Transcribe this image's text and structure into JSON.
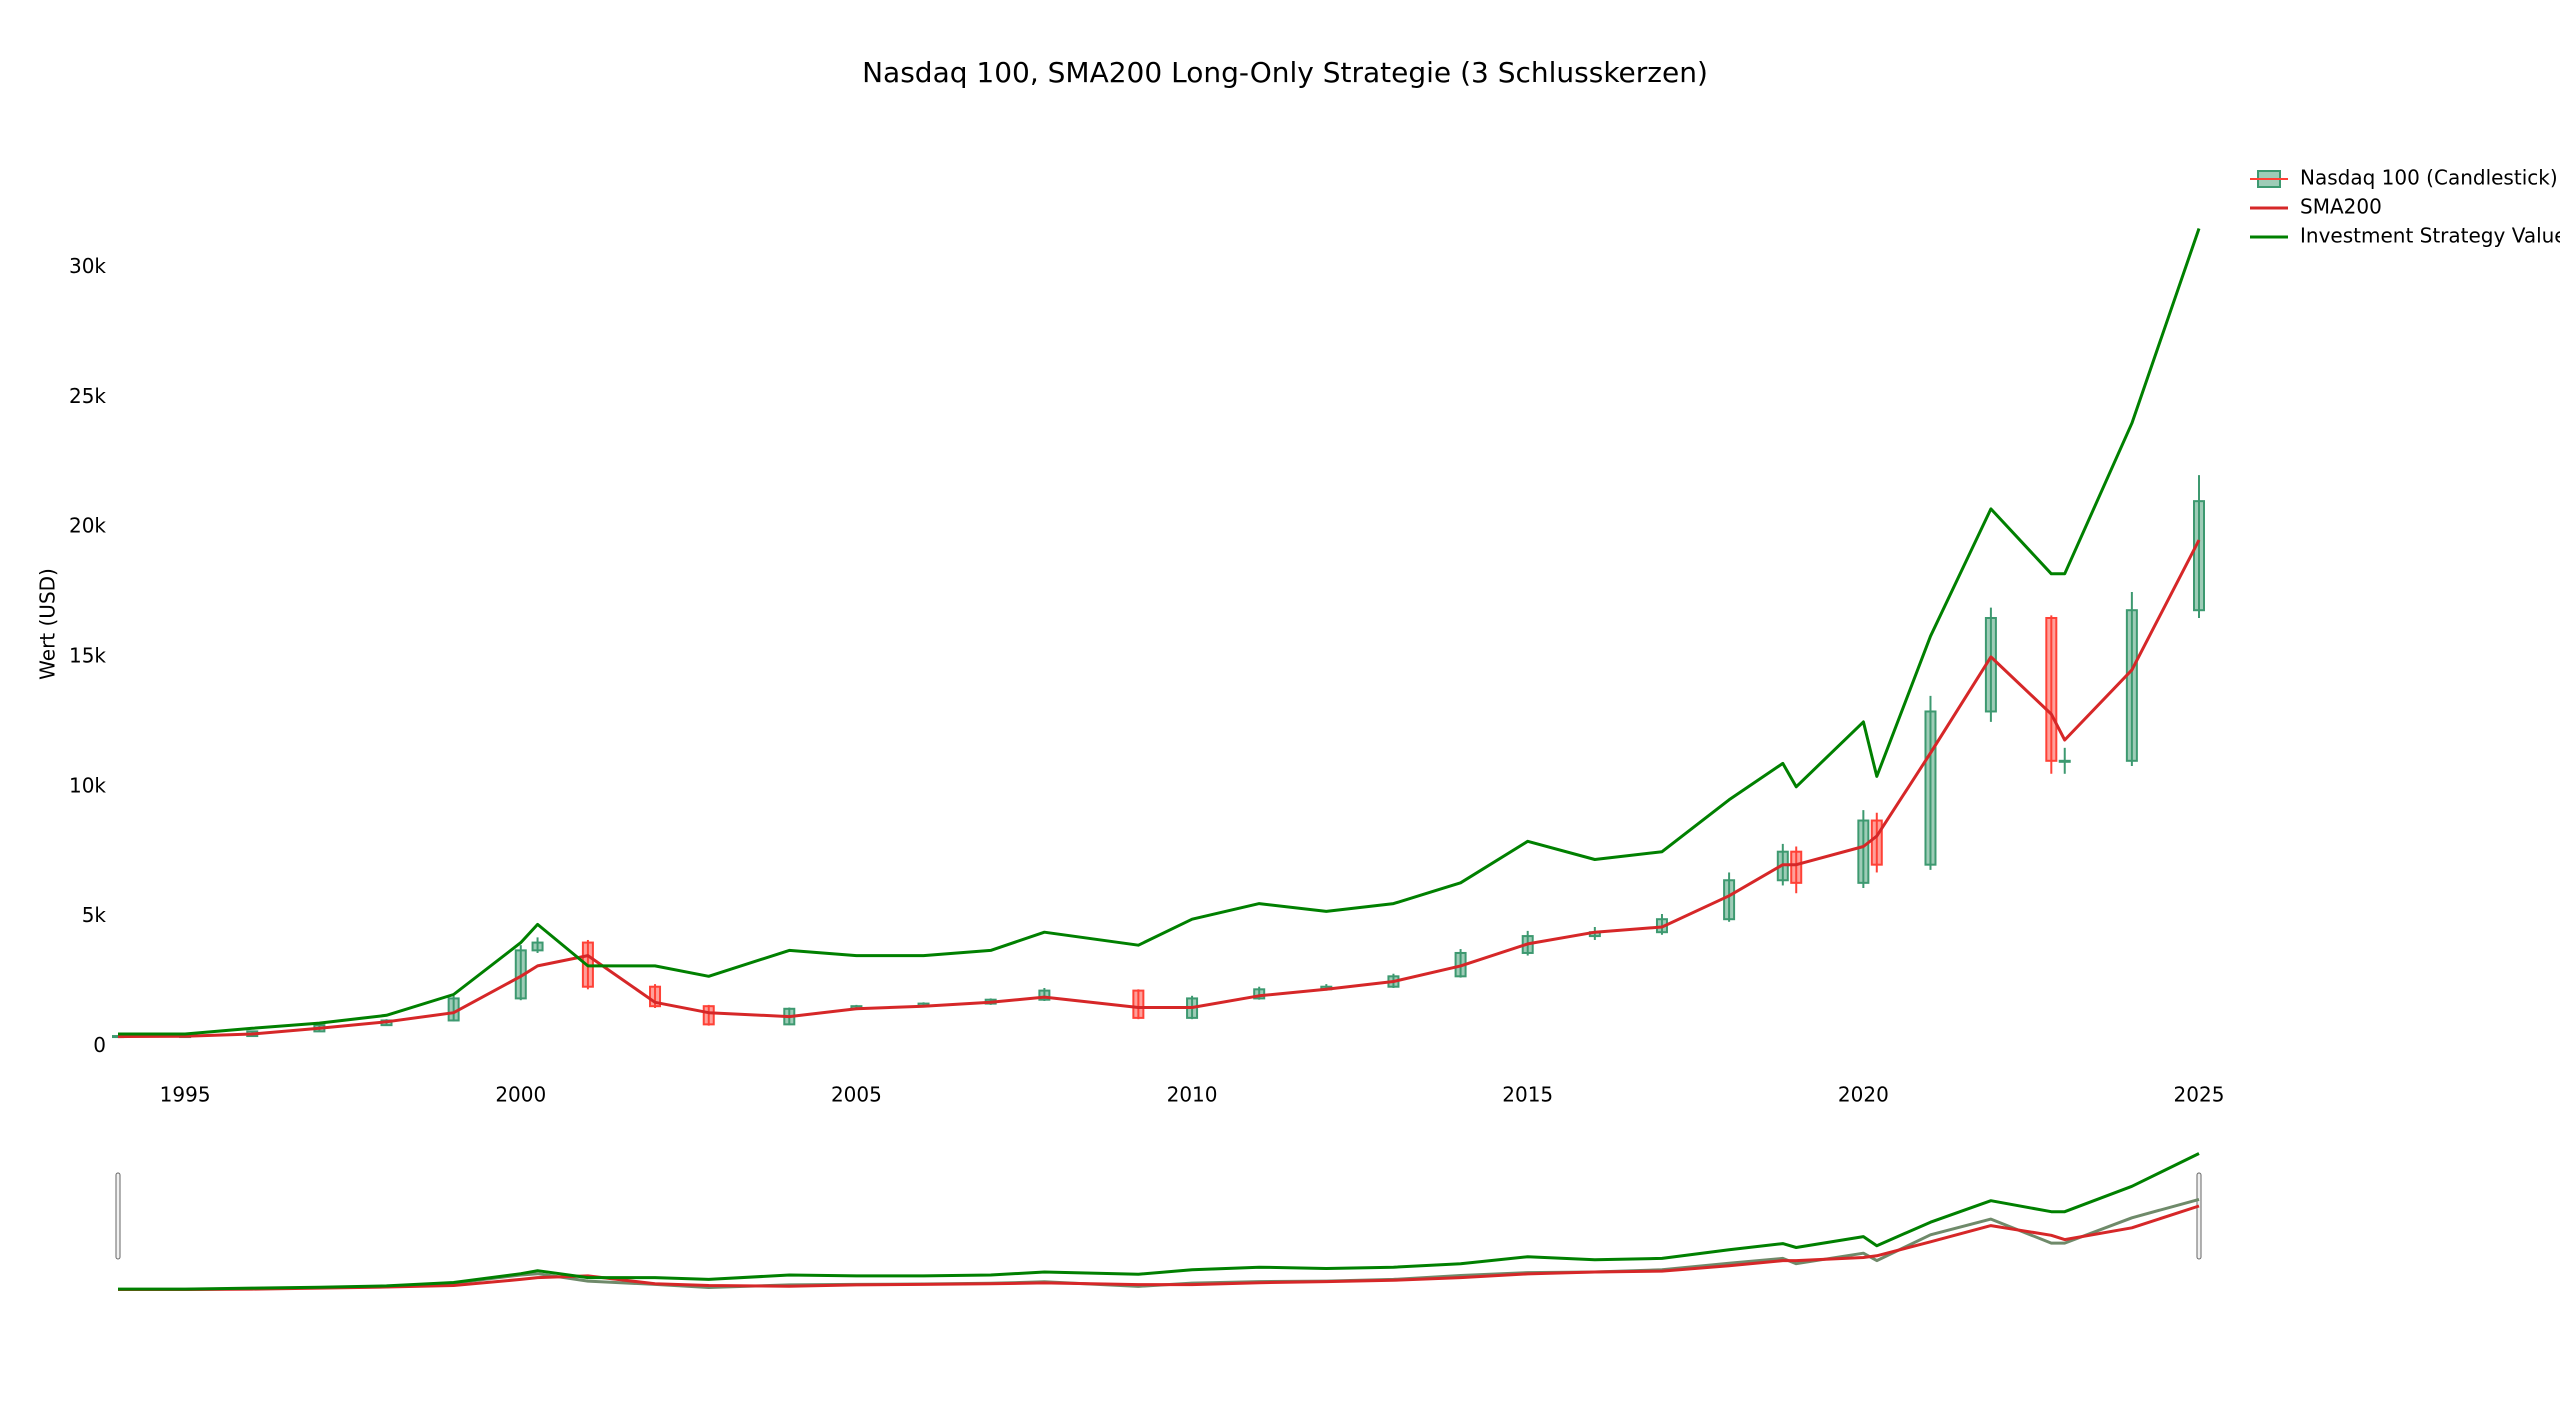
{
  "chart_data": {
    "type": "candlestick",
    "title": "Nasdaq 100, SMA200 Long-Only Strategie (3 Schlusskerzen)",
    "y_label": "Wert (USD)",
    "x": [
      1994,
      1995,
      1996,
      1997,
      1998,
      1999,
      2000,
      2000.25,
      2001,
      2002,
      2002.8,
      2004,
      2005,
      2006,
      2007,
      2007.8,
      2009.2,
      2010,
      2011,
      2012,
      2013,
      2014,
      2015,
      2016,
      2017,
      2018,
      2018.8,
      2019,
      2020,
      2020.2,
      2021,
      2021.9,
      2022.8,
      2023,
      2024,
      2025
    ],
    "xlim": [
      1994.0,
      2025.0
    ],
    "xticks": [
      1995,
      2000,
      2005,
      2010,
      2015,
      2020,
      2025
    ],
    "ylim": [
      -1100,
      34600
    ],
    "yticks": [
      0,
      {
        "value": 5000,
        "label": "5k"
      },
      {
        "value": 10000,
        "label": "10k"
      },
      {
        "value": 15000,
        "label": "15k"
      },
      {
        "value": 20000,
        "label": "20k"
      },
      {
        "value": 25000,
        "label": "25k"
      },
      {
        "value": 30000,
        "label": "30k"
      }
    ],
    "grid": false,
    "legend_position": "top-right",
    "candles": {
      "name": "Nasdaq 100 (Candlestick)",
      "increasing_color": "#3d9970",
      "decreasing_color": "#ff4136",
      "open": [
        380,
        400,
        400,
        580,
        820,
        1000,
        1850,
        3700,
        4000,
        2300,
        1550,
        850,
        1450,
        1550,
        1650,
        1800,
        2150,
        1100,
        1850,
        2200,
        2300,
        2700,
        3600,
        4250,
        4400,
        4900,
        6400,
        7500,
        6300,
        8700,
        7000,
        12900,
        16500,
        11000,
        11000,
        16800
      ],
      "high": [
        420,
        420,
        600,
        860,
        1050,
        1950,
        3900,
        4200,
        4100,
        2400,
        1600,
        1500,
        1600,
        1700,
        1850,
        2250,
        2200,
        1950,
        2300,
        2400,
        2800,
        3750,
        4450,
        4600,
        5100,
        6700,
        7800,
        7700,
        9100,
        9000,
        13500,
        16900,
        16600,
        11500,
        17500,
        22000
      ],
      "low": [
        360,
        380,
        390,
        560,
        790,
        960,
        1780,
        3600,
        2200,
        1480,
        800,
        820,
        1400,
        1500,
        1600,
        1750,
        1050,
        1050,
        1800,
        2150,
        2250,
        2650,
        3500,
        4100,
        4300,
        4800,
        6200,
        5900,
        6100,
        6700,
        6800,
        12500,
        10500,
        10500,
        10800,
        16500
      ],
      "close": [
        400,
        400,
        580,
        820,
        1000,
        1850,
        3700,
        4000,
        2300,
        1550,
        850,
        1450,
        1550,
        1650,
        1800,
        2150,
        1100,
        1850,
        2200,
        2300,
        2700,
        3600,
        4250,
        4400,
        4900,
        6400,
        7500,
        6300,
        8700,
        7000,
        12900,
        16500,
        11000,
        11000,
        16800,
        21000
      ]
    },
    "series": [
      {
        "name": "SMA200",
        "color": "#d62728",
        "values": [
          380,
          390,
          480,
          700,
          950,
          1300,
          2700,
          3100,
          3500,
          1700,
          1300,
          1150,
          1450,
          1550,
          1700,
          1900,
          1500,
          1500,
          1950,
          2200,
          2500,
          3100,
          3950,
          4400,
          4600,
          5800,
          7000,
          7000,
          7700,
          8100,
          11300,
          15000,
          12800,
          11800,
          14500,
          19500
        ]
      },
      {
        "name": "Investment Strategy Value",
        "color": "#008000",
        "values": [
          480,
          480,
          700,
          900,
          1200,
          2000,
          4000,
          4700,
          3100,
          3100,
          2700,
          3700,
          3500,
          3500,
          3700,
          4400,
          3900,
          4900,
          5500,
          5200,
          5500,
          6300,
          7900,
          7200,
          7500,
          9500,
          10900,
          10000,
          12500,
          10400,
          15800,
          20700,
          18200,
          18200,
          24000,
          31500
        ]
      }
    ]
  }
}
